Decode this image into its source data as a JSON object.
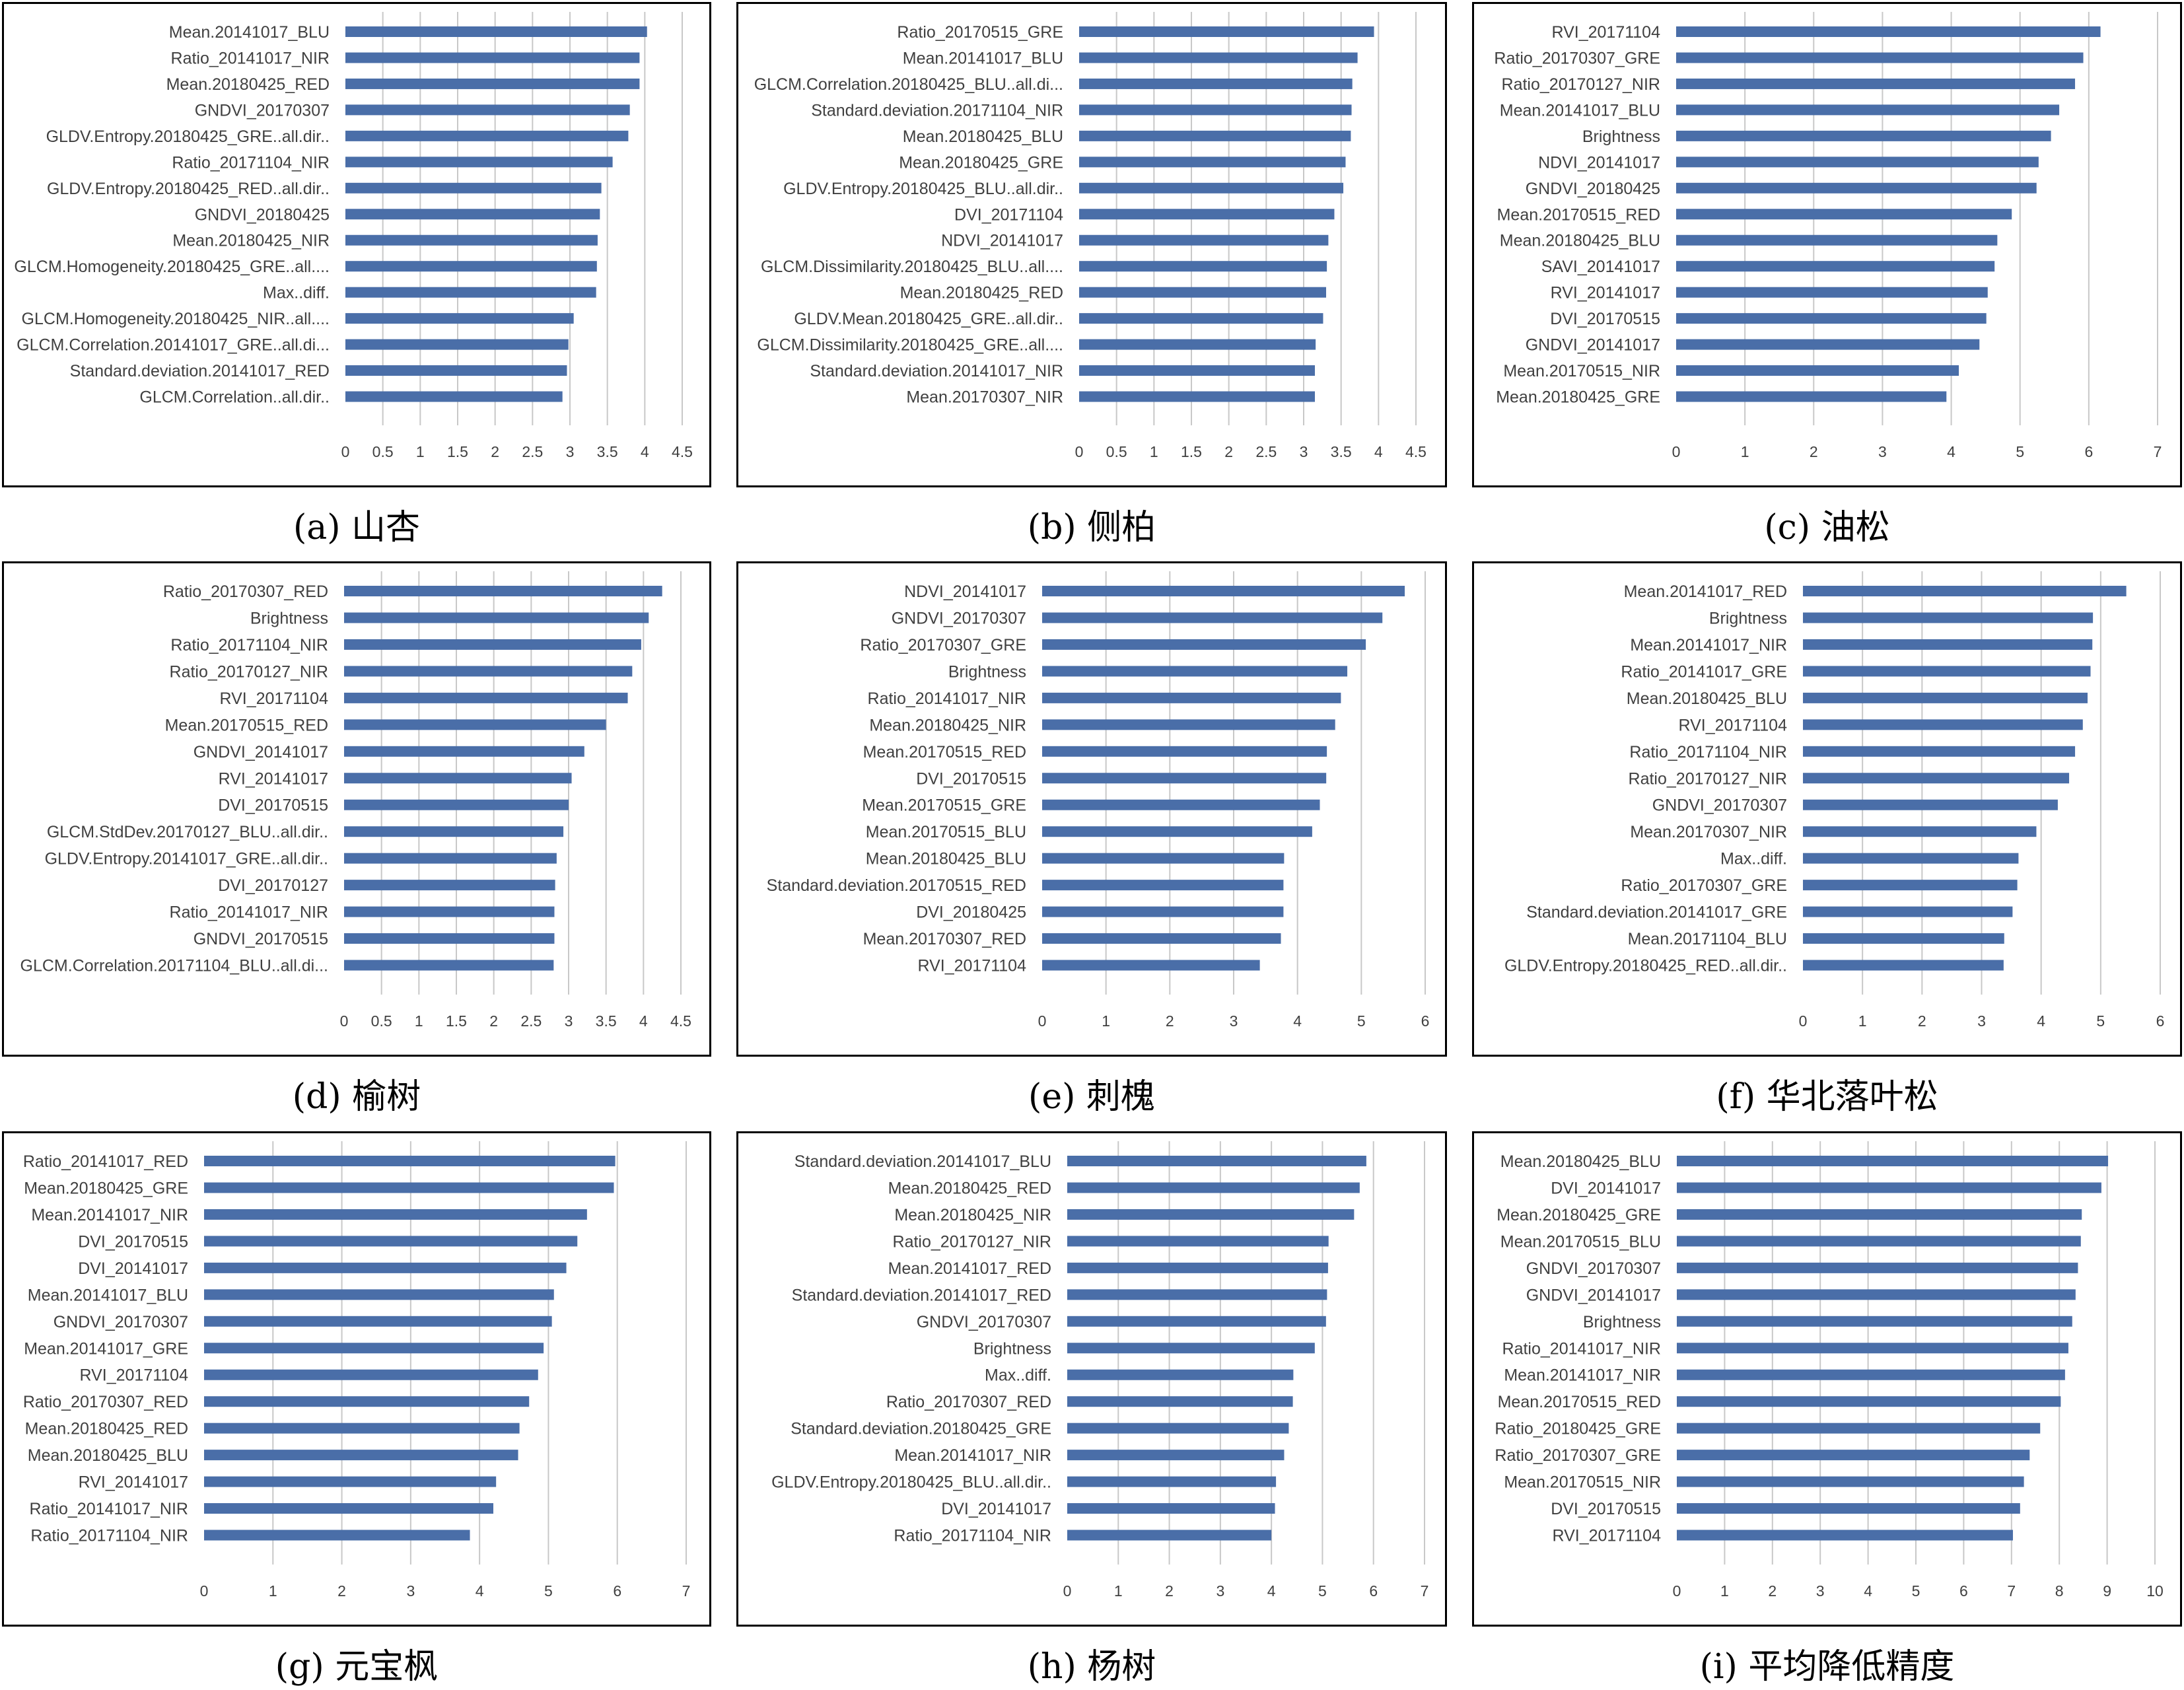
{
  "style": {
    "bar_color": "#4A6EA8",
    "grid_color": "#C8C8C8",
    "text_color": "#404040"
  },
  "chart_data": [
    {
      "type": "bar",
      "orientation": "horizontal",
      "caption": "(a) 山杏",
      "xlim": [
        0,
        4.5
      ],
      "xticks": [
        "0",
        "0.5",
        "1",
        "1.5",
        "2",
        "2.5",
        "3",
        "3.5",
        "4",
        "4.5"
      ],
      "grid": true,
      "categories": [
        "Mean.20141017_BLU",
        "Ratio_20141017_NIR",
        "Mean.20180425_RED",
        "GNDVI_20170307",
        "GLDV.Entropy.20180425_GRE..all.dir..",
        "Ratio_20171104_NIR",
        "GLDV.Entropy.20180425_RED..all.dir..",
        "GNDVI_20180425",
        "Mean.20180425_NIR",
        "GLCM.Homogeneity.20180425_GRE..all....",
        "Max..diff.",
        "GLCM.Homogeneity.20180425_NIR..all....",
        "GLCM.Correlation.20141017_GRE..all.di...",
        "Standard.deviation.20141017_RED",
        "GLCM.Correlation..all.dir.."
      ],
      "values": [
        4.03,
        3.93,
        3.93,
        3.8,
        3.78,
        3.57,
        3.42,
        3.4,
        3.37,
        3.36,
        3.35,
        3.05,
        2.98,
        2.96,
        2.9
      ]
    },
    {
      "type": "bar",
      "orientation": "horizontal",
      "caption": "(b) 侧柏",
      "xlim": [
        0,
        4.5
      ],
      "xticks": [
        "0",
        "0.5",
        "1",
        "1.5",
        "2",
        "2.5",
        "3",
        "3.5",
        "4",
        "4.5"
      ],
      "grid": true,
      "categories": [
        "Ratio_20170515_GRE",
        "Mean.20141017_BLU",
        "GLCM.Correlation.20180425_BLU..all.di...",
        "Standard.deviation.20171104_NIR",
        "Mean.20180425_BLU",
        "Mean.20180425_GRE",
        "GLDV.Entropy.20180425_BLU..all.dir..",
        "DVI_20171104",
        "NDVI_20141017",
        "GLCM.Dissimilarity.20180425_BLU..all....",
        "Mean.20180425_RED",
        "GLDV.Mean.20180425_GRE..all.dir..",
        "GLCM.Dissimilarity.20180425_GRE..all....",
        "Standard.deviation.20141017_NIR",
        "Mean.20170307_NIR"
      ],
      "values": [
        3.94,
        3.72,
        3.65,
        3.64,
        3.63,
        3.56,
        3.53,
        3.41,
        3.33,
        3.31,
        3.3,
        3.26,
        3.16,
        3.15,
        3.15
      ]
    },
    {
      "type": "bar",
      "orientation": "horizontal",
      "caption": "(c) 油松",
      "xlim": [
        0,
        7
      ],
      "xticks": [
        "0",
        "1",
        "2",
        "3",
        "4",
        "5",
        "6",
        "7"
      ],
      "grid": true,
      "categories": [
        "RVI_20171104",
        "Ratio_20170307_GRE",
        "Ratio_20170127_NIR",
        "Mean.20141017_BLU",
        "Brightness",
        "NDVI_20141017",
        "GNDVI_20180425",
        "Mean.20170515_RED",
        "Mean.20180425_BLU",
        "SAVI_20141017",
        "RVI_20141017",
        "DVI_20170515",
        "GNDVI_20141017",
        "Mean.20170515_NIR",
        "Mean.20180425_GRE"
      ],
      "values": [
        6.17,
        5.92,
        5.8,
        5.57,
        5.45,
        5.27,
        5.24,
        4.88,
        4.67,
        4.63,
        4.53,
        4.51,
        4.41,
        4.11,
        3.93
      ]
    },
    {
      "type": "bar",
      "orientation": "horizontal",
      "caption": "(d) 榆树",
      "xlim": [
        0,
        4.5
      ],
      "xticks": [
        "0",
        "0.5",
        "1",
        "1.5",
        "2",
        "2.5",
        "3",
        "3.5",
        "4",
        "4.5"
      ],
      "grid": true,
      "categories": [
        "Ratio_20170307_RED",
        "Brightness",
        "Ratio_20171104_NIR",
        "Ratio_20170127_NIR",
        "RVI_20171104",
        "Mean.20170515_RED",
        "GNDVI_20141017",
        "RVI_20141017",
        "DVI_20170515",
        "GLCM.StdDev.20170127_BLU..all.dir..",
        "GLDV.Entropy.20141017_GRE..all.dir..",
        "DVI_20170127",
        "Ratio_20141017_NIR",
        "GNDVI_20170515",
        "GLCM.Correlation.20171104_BLU..all.di..."
      ],
      "values": [
        4.25,
        4.07,
        3.97,
        3.85,
        3.79,
        3.5,
        3.21,
        3.04,
        3.0,
        2.93,
        2.84,
        2.82,
        2.81,
        2.81,
        2.8
      ]
    },
    {
      "type": "bar",
      "orientation": "horizontal",
      "caption": "(e) 刺槐",
      "xlim": [
        0,
        6
      ],
      "xticks": [
        "0",
        "1",
        "2",
        "3",
        "4",
        "5",
        "6"
      ],
      "grid": true,
      "categories": [
        "NDVI_20141017",
        "GNDVI_20170307",
        "Ratio_20170307_GRE",
        "Brightness",
        "Ratio_20141017_NIR",
        "Mean.20180425_NIR",
        "Mean.20170515_RED",
        "DVI_20170515",
        "Mean.20170515_GRE",
        "Mean.20170515_BLU",
        "Mean.20180425_BLU",
        "Standard.deviation.20170515_RED",
        "DVI_20180425",
        "Mean.20170307_RED",
        "RVI_20171104"
      ],
      "values": [
        5.68,
        5.33,
        5.07,
        4.78,
        4.68,
        4.59,
        4.46,
        4.45,
        4.35,
        4.23,
        3.79,
        3.78,
        3.78,
        3.74,
        3.41
      ]
    },
    {
      "type": "bar",
      "orientation": "horizontal",
      "caption": "(f) 华北落叶松",
      "xlim": [
        0,
        6
      ],
      "xticks": [
        "0",
        "1",
        "2",
        "3",
        "4",
        "5",
        "6"
      ],
      "grid": true,
      "categories": [
        "Mean.20141017_RED",
        "Brightness",
        "Mean.20141017_NIR",
        "Ratio_20141017_GRE",
        "Mean.20180425_BLU",
        "RVI_20171104",
        "Ratio_20171104_NIR",
        "Ratio_20170127_NIR",
        "GNDVI_20170307",
        "Mean.20170307_NIR",
        "Max..diff.",
        "Ratio_20170307_GRE",
        "Standard.deviation.20141017_GRE",
        "Mean.20171104_BLU",
        "GLDV.Entropy.20180425_RED..all.dir.."
      ],
      "values": [
        5.43,
        4.87,
        4.86,
        4.83,
        4.78,
        4.7,
        4.57,
        4.47,
        4.28,
        3.92,
        3.62,
        3.6,
        3.52,
        3.38,
        3.37
      ]
    },
    {
      "type": "bar",
      "orientation": "horizontal",
      "caption": "(g) 元宝枫",
      "xlim": [
        0,
        7
      ],
      "xticks": [
        "0",
        "1",
        "2",
        "3",
        "4",
        "5",
        "6",
        "7"
      ],
      "grid": true,
      "categories": [
        "Ratio_20141017_RED",
        "Mean.20180425_GRE",
        "Mean.20141017_NIR",
        "DVI_20170515",
        "DVI_20141017",
        "Mean.20141017_BLU",
        "GNDVI_20170307",
        "Mean.20141017_GRE",
        "RVI_20171104",
        "Ratio_20170307_RED",
        "Mean.20180425_RED",
        "Mean.20180425_BLU",
        "RVI_20141017",
        "Ratio_20141017_NIR",
        "Ratio_20171104_NIR"
      ],
      "values": [
        5.97,
        5.95,
        5.56,
        5.42,
        5.26,
        5.08,
        5.05,
        4.93,
        4.85,
        4.72,
        4.58,
        4.56,
        4.24,
        4.2,
        3.86
      ]
    },
    {
      "type": "bar",
      "orientation": "horizontal",
      "caption": "(h) 杨树",
      "xlim": [
        0,
        7
      ],
      "xticks": [
        "0",
        "1",
        "2",
        "3",
        "4",
        "5",
        "6",
        "7"
      ],
      "grid": true,
      "categories": [
        "Standard.deviation.20141017_BLU",
        "Mean.20180425_RED",
        "Mean.20180425_NIR",
        "Ratio_20170127_NIR",
        "Mean.20141017_RED",
        "Standard.deviation.20141017_RED",
        "GNDVI_20170307",
        "Brightness",
        "Max..diff.",
        "Ratio_20170307_RED",
        "Standard.deviation.20180425_GRE",
        "Mean.20141017_NIR",
        "GLDV.Entropy.20180425_BLU..all.dir..",
        "DVI_20141017",
        "Ratio_20171104_NIR"
      ],
      "values": [
        5.86,
        5.73,
        5.62,
        5.12,
        5.11,
        5.09,
        5.07,
        4.85,
        4.43,
        4.42,
        4.34,
        4.25,
        4.09,
        4.07,
        4.0
      ]
    },
    {
      "type": "bar",
      "orientation": "horizontal",
      "caption": "(i) 平均降低精度",
      "xlim": [
        0,
        10
      ],
      "xticks": [
        "0",
        "1",
        "2",
        "3",
        "4",
        "5",
        "6",
        "7",
        "8",
        "9",
        "10"
      ],
      "grid": true,
      "categories": [
        "Mean.20180425_BLU",
        "DVI_20141017",
        "Mean.20180425_GRE",
        "Mean.20170515_BLU",
        "GNDVI_20170307",
        "GNDVI_20141017",
        "Brightness",
        "Ratio_20141017_NIR",
        "Mean.20141017_NIR",
        "Mean.20170515_RED",
        "Ratio_20180425_GRE",
        "Ratio_20170307_GRE",
        "Mean.20170515_NIR",
        "DVI_20170515",
        "RVI_20171104"
      ],
      "values": [
        9.02,
        8.88,
        8.47,
        8.45,
        8.39,
        8.34,
        8.27,
        8.19,
        8.12,
        8.03,
        7.6,
        7.38,
        7.26,
        7.18,
        7.03
      ]
    }
  ]
}
